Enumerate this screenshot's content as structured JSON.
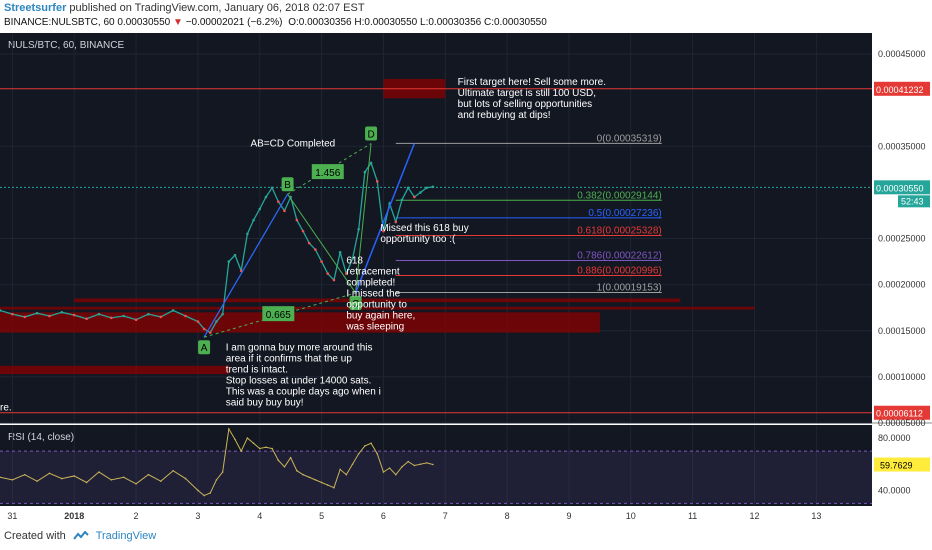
{
  "header": {
    "author": "Streetsurfer",
    "published": "published on TradingView.com, January 06, 2018 02:07 EST",
    "symbol_line": "BINANCE:NULSBTC, 60",
    "last": "0.00030550",
    "change_arrow": "▼",
    "change": "−0.00002021 (−6.2%)",
    "open": "O:0.00030356",
    "high": "H:0.00030550",
    "low": "L:0.00030356",
    "close": "C:0.00030550"
  },
  "footer": {
    "created_with": "Created with",
    "brand": "TradingView"
  },
  "chart_data": [
    {
      "type": "line",
      "title": "NULS/BTC, 60, BINANCE",
      "x_ticks": [
        "31",
        "2018",
        "2",
        "3",
        "4",
        "5",
        "6",
        "7",
        "8",
        "9",
        "10",
        "11",
        "12",
        "13"
      ],
      "x_tick_values": [
        -1,
        0,
        1,
        2,
        3,
        4,
        5,
        6,
        7,
        8,
        9,
        10,
        11,
        12
      ],
      "xlim": [
        -1.2,
        12.9
      ],
      "ylim": [
        5e-05,
        0.0004728
      ],
      "y_ticks": [
        "0.00045000",
        "0.00035000",
        "0.00025000",
        "0.00020000",
        "0.00015000",
        "0.00010000",
        "0.00005000"
      ],
      "y_tick_values": [
        0.00045,
        0.00035,
        0.00025,
        0.0002,
        0.00015,
        0.0001,
        5e-05
      ],
      "price_series": {
        "x": [
          -1.2,
          -1.0,
          -0.8,
          -0.6,
          -0.4,
          -0.2,
          0.0,
          0.2,
          0.4,
          0.6,
          0.8,
          1.0,
          1.2,
          1.4,
          1.6,
          1.8,
          2.0,
          2.1,
          2.2,
          2.3,
          2.4,
          2.5,
          2.6,
          2.7,
          2.8,
          2.9,
          3.0,
          3.1,
          3.2,
          3.3,
          3.4,
          3.5,
          3.6,
          3.7,
          3.8,
          3.9,
          4.0,
          4.1,
          4.2,
          4.3,
          4.4,
          4.5,
          4.6,
          4.7,
          4.8,
          4.9,
          5.0,
          5.1,
          5.2,
          5.3,
          5.4,
          5.5,
          5.6,
          5.7,
          5.8
        ],
        "y": [
          0.000172,
          0.000168,
          0.000165,
          0.000169,
          0.000166,
          0.00017,
          0.000167,
          0.000163,
          0.000168,
          0.000164,
          0.000166,
          0.000162,
          0.000168,
          0.000165,
          0.000172,
          0.000166,
          0.00016,
          0.000152,
          0.000148,
          0.00016,
          0.000168,
          0.000225,
          0.000232,
          0.000215,
          0.000255,
          0.00027,
          0.000282,
          0.000295,
          0.000305,
          0.00029,
          0.00028,
          0.000295,
          0.00027,
          0.000258,
          0.000245,
          0.000238,
          0.000225,
          0.000212,
          0.000205,
          0.000235,
          0.000212,
          0.000228,
          0.00026,
          0.000322,
          0.000332,
          0.000312,
          0.000258,
          0.000288,
          0.000268,
          0.000292,
          0.000305,
          0.000295,
          0.0003,
          0.000305,
          0.000306
        ]
      },
      "horizontal_lines": [
        {
          "value": 0.00041232,
          "label": "0.00041232",
          "color": "#e53935"
        },
        {
          "value": 6.112e-05,
          "label": "0.00006112",
          "color": "#e53935"
        }
      ],
      "last_price": {
        "value": 0.0003055,
        "label": "0.00030550",
        "countdown": "52:43"
      },
      "fib_levels": [
        {
          "label": "0(0.00035319)",
          "value": 0.00035319,
          "color": "#9e9e9e"
        },
        {
          "label": "0.382(0.00029144)",
          "value": 0.00029144,
          "color": "#4caf50"
        },
        {
          "label": "0.5(0.00027236)",
          "value": 0.00027236,
          "color": "#2962ff"
        },
        {
          "label": "0.618(0.00025328)",
          "value": 0.00025328,
          "color": "#e53935"
        },
        {
          "label": "0.786(0.00022612)",
          "value": 0.00022612,
          "color": "#7e57c2"
        },
        {
          "label": "0.886(0.00020996)",
          "value": 0.00020996,
          "color": "#e53935"
        },
        {
          "label": "1(0.00019153)",
          "value": 0.00019153,
          "color": "#9e9e9e"
        }
      ],
      "fib_x_range": [
        5.2,
        9.5
      ],
      "zones": [
        {
          "x": [
            5.0,
            6.0
          ],
          "y": [
            0.000402,
            0.000423
          ],
          "color": "#8b0000"
        },
        {
          "x": [
            0.0,
            9.8
          ],
          "y": [
            0.000181,
            0.000185
          ],
          "color": "#8b0000"
        },
        {
          "x": [
            -1.2,
            8.5
          ],
          "y": [
            0.000148,
            0.00017
          ],
          "color": "#8b0000"
        },
        {
          "x": [
            -1.2,
            2.5
          ],
          "y": [
            0.000103,
            0.000112
          ],
          "color": "#8b0000"
        },
        {
          "x": [
            -1.2,
            11.0
          ],
          "y": [
            0.000173,
            0.000176
          ],
          "color": "#8b0000"
        }
      ],
      "pattern_points": [
        {
          "label": "A",
          "x": 2.1,
          "y": 0.000143
        },
        {
          "label": "B",
          "x": 3.45,
          "y": 0.000298
        },
        {
          "label": "C",
          "x": 4.55,
          "y": 0.000191
        },
        {
          "label": "D",
          "x": 4.8,
          "y": 0.000353
        }
      ],
      "pattern_ratios": [
        {
          "label": "1.456",
          "x": 4.1,
          "y": 0.000322
        },
        {
          "label": "0.665",
          "x": 3.3,
          "y": 0.000168
        }
      ],
      "trendline": {
        "x": [
          4.55,
          5.5
        ],
        "y": [
          0.000191,
          0.000353
        ]
      },
      "annotations": [
        {
          "id": "target",
          "lines": [
            "First target here! Sell some more.",
            "",
            "Ultimate target is still 100 USD,",
            "but lots of selling opportunities",
            "and rebuying at dips!"
          ],
          "x": 6.2,
          "y": 0.00041632
        },
        {
          "id": "abcd",
          "lines": [
            "AB=CD Completed"
          ],
          "x": 2.85,
          "y": 0.00035
        },
        {
          "id": "missed618",
          "lines": [
            "Missed this 618 buy",
            "opportunity too :("
          ],
          "x": 4.95,
          "y": 0.00025828
        },
        {
          "id": "retrace",
          "lines": [
            "618",
            "retracement",
            "completed!",
            "I missed the",
            "opportunity to",
            "buy again here,",
            "was sleeping"
          ],
          "x": 4.4,
          "y": 0.00022312
        },
        {
          "id": "buymore",
          "lines": [
            "I am gonna buy more around this",
            "area if it confirms that the up",
            "trend is intact.",
            "Stop losses at under 14000 sats.",
            "",
            "This was a couple days ago when i",
            "said buy buy buy!"
          ],
          "x": 2.45,
          "y": 0.00012833
        },
        {
          "id": "cut",
          "lines": [
            "re."
          ],
          "x": -1.2,
          "y": 6.333e-05
        }
      ]
    },
    {
      "type": "line",
      "title": "RSI (14, close)",
      "ylim": [
        28,
        90
      ],
      "y_ticks": [
        "80.0000",
        "40.0000"
      ],
      "y_tick_values": [
        80,
        40
      ],
      "bands": [
        70,
        30
      ],
      "last_value": {
        "value": 59.7629,
        "label": "59.7629"
      },
      "series": {
        "x": [
          -1.2,
          -1.0,
          -0.8,
          -0.6,
          -0.4,
          -0.2,
          0.0,
          0.2,
          0.4,
          0.6,
          0.8,
          1.0,
          1.2,
          1.4,
          1.6,
          1.8,
          2.0,
          2.1,
          2.2,
          2.3,
          2.4,
          2.5,
          2.6,
          2.7,
          2.8,
          2.9,
          3.0,
          3.1,
          3.2,
          3.3,
          3.4,
          3.5,
          3.6,
          3.7,
          3.8,
          3.9,
          4.0,
          4.1,
          4.2,
          4.3,
          4.4,
          4.5,
          4.6,
          4.7,
          4.8,
          4.9,
          5.0,
          5.1,
          5.2,
          5.3,
          5.4,
          5.5,
          5.6,
          5.7,
          5.8
        ],
        "y": [
          50,
          48,
          52,
          47,
          53,
          49,
          51,
          46,
          54,
          48,
          50,
          45,
          52,
          47,
          55,
          49,
          40,
          36,
          38,
          48,
          54,
          87,
          79,
          70,
          80,
          76,
          72,
          73,
          72,
          63,
          58,
          65,
          55,
          52,
          50,
          48,
          46,
          44,
          42,
          56,
          52,
          60,
          68,
          74,
          76,
          68,
          54,
          57,
          52,
          58,
          62,
          59,
          60,
          61,
          59.76
        ]
      }
    }
  ]
}
